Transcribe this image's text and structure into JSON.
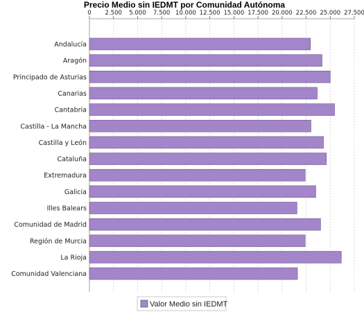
{
  "chart_data": {
    "type": "bar",
    "orientation": "horizontal",
    "title": "Precio Medio sin IEDMT por Comunidad Autónoma",
    "xlim": [
      0,
      27500
    ],
    "xticks": [
      0,
      2500,
      5000,
      7500,
      10000,
      12500,
      15000,
      17500,
      20000,
      22500,
      25000,
      27500
    ],
    "xtick_labels": [
      "0",
      "2.500",
      "5.000",
      "7.500",
      "10.000",
      "12.500",
      "15.000",
      "17.500",
      "20.000",
      "22.500",
      "25.000",
      "27.500"
    ],
    "grid": true,
    "legend_position": "bottom",
    "categories": [
      "Andalucía",
      "Aragón",
      "Principado de Asturias",
      "Canarias",
      "Cantabria",
      "Castilla - La Mancha",
      "Castilla y León",
      "Cataluña",
      "Extremadura",
      "Galicia",
      "Illes Balears",
      "Comunidad de Madrid",
      "Región de Murcia",
      "La Rioja",
      "Comunidad Valenciana"
    ],
    "series": [
      {
        "name": "Valor Medio sin IEDMT",
        "color": "#a385c9",
        "values": [
          22950,
          24150,
          25000,
          23650,
          25450,
          23000,
          24300,
          24600,
          22400,
          23500,
          21550,
          24000,
          22400,
          26150,
          21600
        ]
      }
    ]
  }
}
